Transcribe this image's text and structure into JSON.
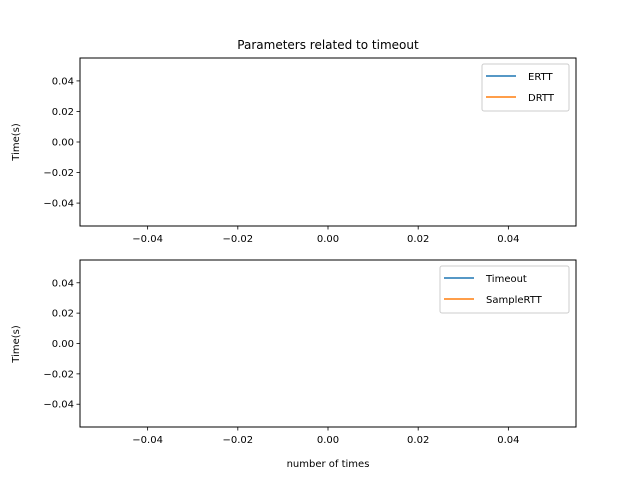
{
  "chart_data": [
    {
      "type": "line",
      "title": "Parameters related to timeout",
      "xlabel": "",
      "ylabel": "Time(s)",
      "xlim": [
        -0.055,
        0.055
      ],
      "ylim": [
        -0.055,
        0.055
      ],
      "xticks": [
        -0.04,
        -0.02,
        0.0,
        0.02,
        0.04
      ],
      "yticks": [
        0.04,
        0.02,
        0.0,
        -0.02,
        -0.04
      ],
      "xtick_labels": [
        "−0.04",
        "−0.02",
        "0.00",
        "0.02",
        "0.04"
      ],
      "ytick_labels": [
        "0.04",
        "0.02",
        "0.00",
        "−0.02",
        "−0.04"
      ],
      "grid": false,
      "legend": "top-right",
      "series": [
        {
          "name": "ERTT",
          "color": "#1f77b4",
          "x": [],
          "y": []
        },
        {
          "name": "DRTT",
          "color": "#ff7f0e",
          "x": [],
          "y": []
        }
      ]
    },
    {
      "type": "line",
      "title": "",
      "xlabel": "number of times",
      "ylabel": "Time(s)",
      "xlim": [
        -0.055,
        0.055
      ],
      "ylim": [
        -0.055,
        0.055
      ],
      "xticks": [
        -0.04,
        -0.02,
        0.0,
        0.02,
        0.04
      ],
      "yticks": [
        0.04,
        0.02,
        0.0,
        -0.02,
        -0.04
      ],
      "xtick_labels": [
        "−0.04",
        "−0.02",
        "0.00",
        "0.02",
        "0.04"
      ],
      "ytick_labels": [
        "0.04",
        "0.02",
        "0.00",
        "−0.02",
        "−0.04"
      ],
      "grid": false,
      "legend": "top-right",
      "series": [
        {
          "name": "Timeout",
          "color": "#1f77b4",
          "x": [],
          "y": []
        },
        {
          "name": "SampleRTT",
          "color": "#ff7f0e",
          "x": [],
          "y": []
        }
      ]
    }
  ]
}
